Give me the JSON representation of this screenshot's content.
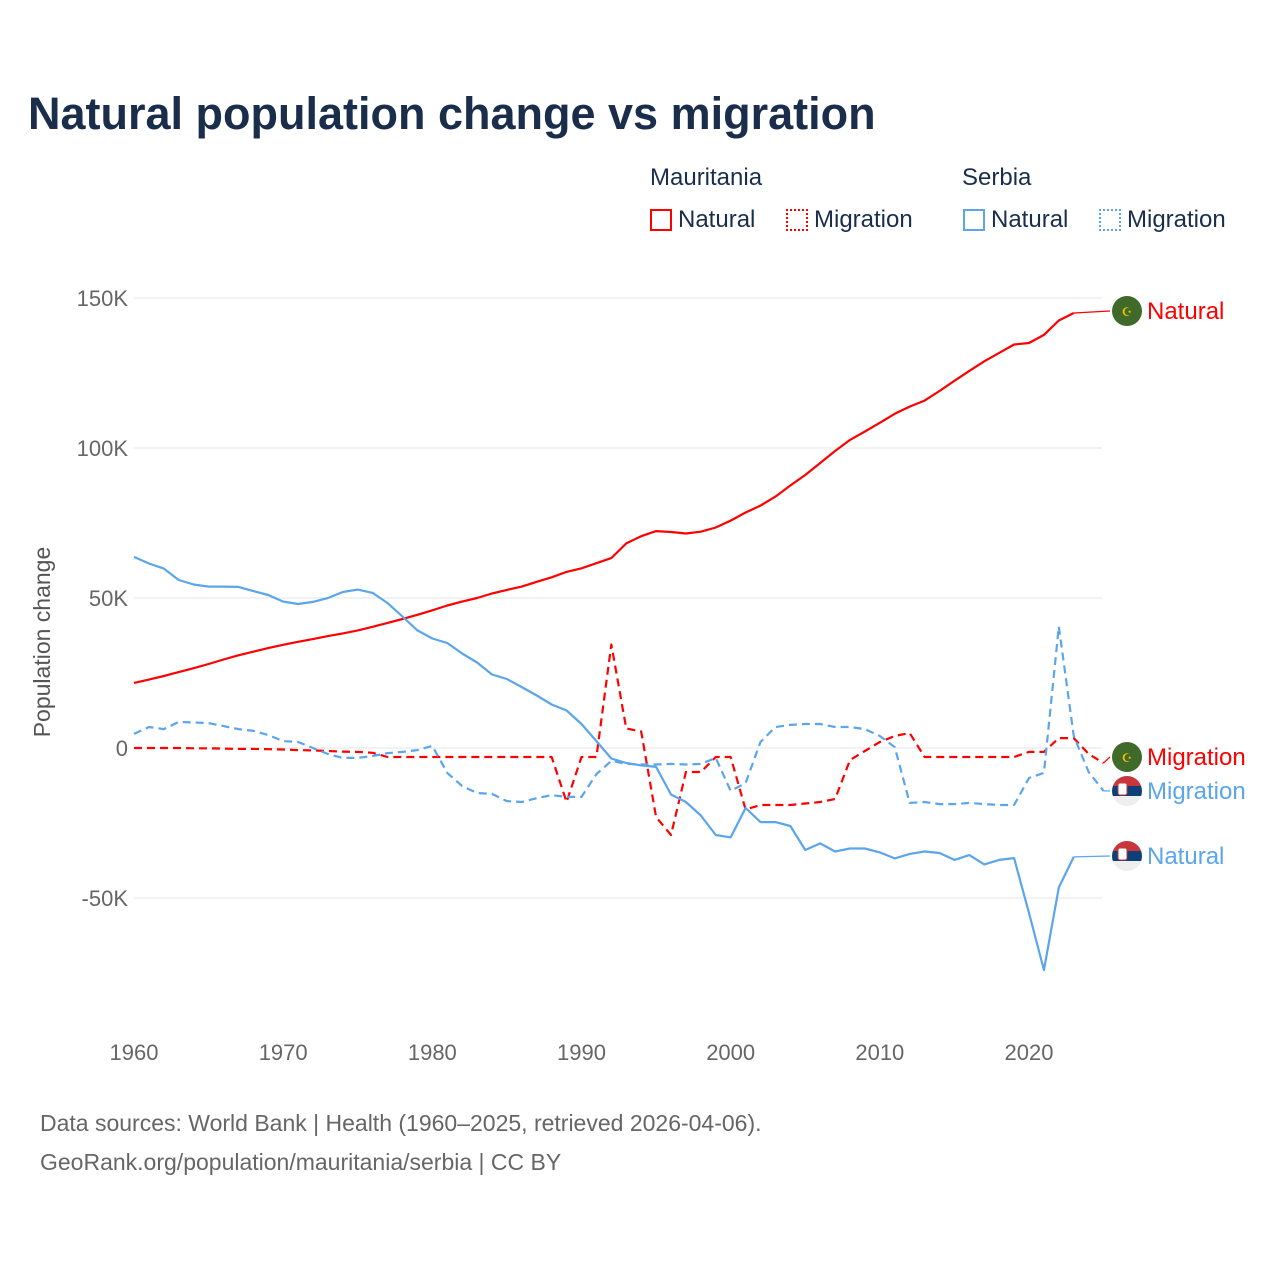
{
  "chart_data": {
    "type": "line",
    "title": "Natural population change vs migration",
    "ylabel": "Population change",
    "xlabel": "",
    "xlim": [
      1960,
      2025
    ],
    "ylim": [
      -80000,
      160000
    ],
    "x_ticks": [
      1960,
      1970,
      1980,
      1990,
      2000,
      2010,
      2020
    ],
    "x_tick_labels": [
      "1960",
      "1970",
      "1980",
      "1990",
      "2000",
      "2010",
      "2020"
    ],
    "y_ticks": [
      -50000,
      0,
      50000,
      100000,
      150000
    ],
    "y_tick_labels": [
      "-50K",
      "0",
      "50K",
      "100K",
      "150K"
    ],
    "grid": true,
    "legend": {
      "placement": "top-right",
      "groups": [
        {
          "name": "Mauritania",
          "items": [
            "Natural",
            "Migration"
          ]
        },
        {
          "name": "Serbia",
          "items": [
            "Natural",
            "Migration"
          ]
        }
      ]
    },
    "series": [
      {
        "country": "Mauritania",
        "name": "Natural",
        "color": "#ff0000",
        "dash": false,
        "start_year": 1960,
        "values": [
          21700,
          22800,
          24000,
          25300,
          26600,
          28000,
          29500,
          30900,
          32100,
          33300,
          34400,
          35400,
          36300,
          37300,
          38200,
          39200,
          40400,
          41700,
          43000,
          44400,
          45900,
          47500,
          48800,
          50000,
          51500,
          52700,
          53800,
          55400,
          56900,
          58700,
          59900,
          61600,
          63300,
          68200,
          70600,
          72300,
          72000,
          71500,
          72100,
          73500,
          75800,
          78500,
          80800,
          83800,
          87500,
          91000,
          95000,
          99000,
          102700,
          105500,
          108400,
          111400,
          113800,
          115800,
          119000,
          122400,
          125700,
          128900,
          131700,
          134500,
          135000,
          137700,
          142500,
          145000
        ]
      },
      {
        "country": "Mauritania",
        "name": "Migration",
        "color": "#ff0000",
        "dash": true,
        "start_year": 1960,
        "values": [
          0,
          0,
          0,
          0,
          -100,
          -100,
          -200,
          -300,
          -300,
          -400,
          -500,
          -700,
          -800,
          -1000,
          -1200,
          -1300,
          -1600,
          -3000,
          -3000,
          -3000,
          -3000,
          -3000,
          -3000,
          -3000,
          -3000,
          -3000,
          -3000,
          -3000,
          -3000,
          -18000,
          -3000,
          -3000,
          34500,
          6500,
          5500,
          -23000,
          -29000,
          -8000,
          -8000,
          -3000,
          -3000,
          -20500,
          -19000,
          -19000,
          -19000,
          -18500,
          -18000,
          -17000,
          -4000,
          -1000,
          2000,
          4000,
          5000,
          -3000,
          -3000,
          -3000,
          -3000,
          -3000,
          -3000,
          -3000,
          -1300,
          -1300,
          3300,
          3300,
          -2000,
          -5000
        ]
      },
      {
        "country": "Serbia",
        "name": "Natural",
        "color": "#5aa5ec",
        "dash": false,
        "start_year": 1960,
        "values": [
          63700,
          61500,
          59800,
          56000,
          54500,
          53800,
          53800,
          53700,
          52300,
          51000,
          48800,
          48000,
          48700,
          50000,
          52000,
          52800,
          51700,
          48300,
          43800,
          39200,
          36500,
          35000,
          31500,
          28500,
          24500,
          23000,
          20300,
          17500,
          14500,
          12500,
          8000,
          2300,
          -3500,
          -5000,
          -5800,
          -6300,
          -15500,
          -18000,
          -22500,
          -29000,
          -29800,
          -20000,
          -24700,
          -24700,
          -26000,
          -34000,
          -31800,
          -34500,
          -33500,
          -33500,
          -34800,
          -36800,
          -35300,
          -34500,
          -35000,
          -37300,
          -35700,
          -38800,
          -37300,
          -36700,
          -55000,
          -74000,
          -46500,
          -36300
        ]
      },
      {
        "country": "Serbia",
        "name": "Migration",
        "color": "#5aa5ec",
        "dash": true,
        "start_year": 1960,
        "values": [
          4700,
          7000,
          6300,
          8700,
          8500,
          8300,
          7300,
          6300,
          5700,
          4300,
          2300,
          2000,
          0,
          -2000,
          -3300,
          -3300,
          -2700,
          -1700,
          -1300,
          -700,
          700,
          -8300,
          -12700,
          -15000,
          -15300,
          -17700,
          -18000,
          -16700,
          -15700,
          -16300,
          -16300,
          -8700,
          -4300,
          -5300,
          -5500,
          -5500,
          -5300,
          -5500,
          -5300,
          -3300,
          -14300,
          -11700,
          2000,
          7000,
          7700,
          8000,
          8000,
          7000,
          7000,
          6300,
          4000,
          300,
          -18300,
          -18000,
          -18700,
          -18700,
          -18300,
          -18700,
          -19000,
          -19000,
          -10000,
          -8300,
          40500,
          4000,
          -8000,
          -14300
        ]
      }
    ],
    "end_labels": [
      {
        "country": "Mauritania",
        "text": "Natural",
        "color": "#ff0000"
      },
      {
        "country": "Mauritania",
        "text": "Migration",
        "color": "#ff0000"
      },
      {
        "country": "Serbia",
        "text": "Migration",
        "color": "#5aa5ec"
      },
      {
        "country": "Serbia",
        "text": "Natural",
        "color": "#5aa5ec"
      }
    ]
  },
  "footer": {
    "line1": "Data sources: World Bank | Health (1960–2025, retrieved 2026-04-06).",
    "line2": "GeoRank.org/population/mauritania/serbia | CC BY"
  }
}
